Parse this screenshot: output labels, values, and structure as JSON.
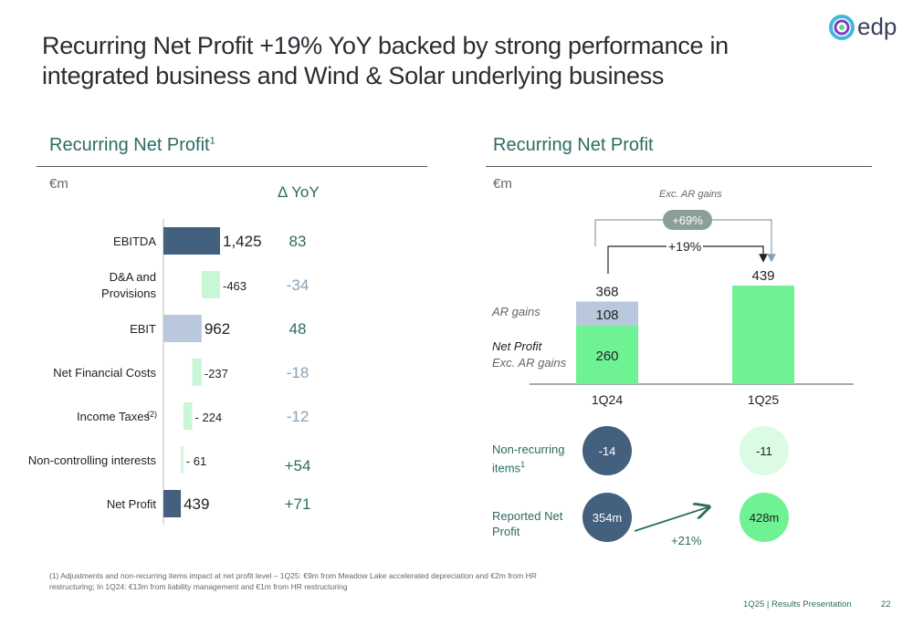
{
  "header": {
    "title": "Recurring Net Profit +19% YoY backed by strong performance in integrated business and Wind & Solar underlying business",
    "logo_text": "edp"
  },
  "left_panel": {
    "title": "Recurring Net Profit",
    "title_sup": "1",
    "unit": "€m",
    "yoy_header": "Δ YoY"
  },
  "right_panel": {
    "title": "Recurring Net Profit",
    "unit": "€m",
    "exc_label": "Exc. AR gains",
    "exc_growth": "+69%",
    "growth": "+19%",
    "ar_gains_label": "AR gains",
    "net_profit_label": "Net Profit",
    "net_profit_label2": "Exc. AR gains",
    "nonrecurring_label": "Non-recurring items",
    "nonrecurring_sup": "1",
    "reported_label": "Reported Net Profit",
    "reported_growth": "+21%",
    "nonrecurring_1q24": "-14",
    "nonrecurring_1q25": "-11",
    "reported_1q24": "354m",
    "reported_1q25": "428m"
  },
  "chart_data": [
    {
      "type": "bar",
      "orientation": "horizontal-waterfall",
      "categories": [
        "EBITDA",
        "D&A and Provisions",
        "EBIT",
        "Net Financial Costs",
        "Income Taxes",
        "Non-controlling interests",
        "Net Profit"
      ],
      "category_sups": [
        "",
        "",
        "",
        "",
        "(2)",
        "",
        ""
      ],
      "values": [
        1425,
        -463,
        962,
        -237,
        -224,
        -61,
        439
      ],
      "value_labels": [
        "1,425",
        "-463",
        "962",
        "-237",
        "- 224",
        "- 61",
        "439"
      ],
      "yoy": [
        "83",
        "-34",
        "48",
        "-18",
        "-12",
        "+54",
        "+71"
      ],
      "title": "Recurring Net Profit",
      "xlabel": "",
      "ylabel": "€m",
      "colors": {
        "ebitda": "#44607f",
        "ebit": "#b9c8dc",
        "negative": "#c9f7d6",
        "net_profit": "#44607f",
        "yoy_pos": "#2d6b63",
        "yoy_neg": "#8aa0b4"
      }
    },
    {
      "type": "bar",
      "stacked": true,
      "categories": [
        "1Q24",
        "1Q25"
      ],
      "series": [
        {
          "name": "Net Profit Exc. AR gains",
          "values": [
            260,
            439
          ]
        },
        {
          "name": "AR gains",
          "values": [
            108,
            0
          ]
        }
      ],
      "totals": [
        368,
        439
      ],
      "title": "Recurring Net Profit",
      "ylabel": "€m",
      "colors": {
        "net_profit": "#6ff294",
        "ar_gains": "#b9c8dc"
      }
    }
  ],
  "footer": {
    "footnote": "(1) Adjustments and non-recurring items impact at net profit level – 1Q25: €9m from Meadow Lake accelerated depreciation and €2m from HR restructuring; In 1Q24: €13m from liability management and €1m from HR restructuring",
    "presentation": "1Q25 | Results Presentation",
    "page": "22"
  }
}
